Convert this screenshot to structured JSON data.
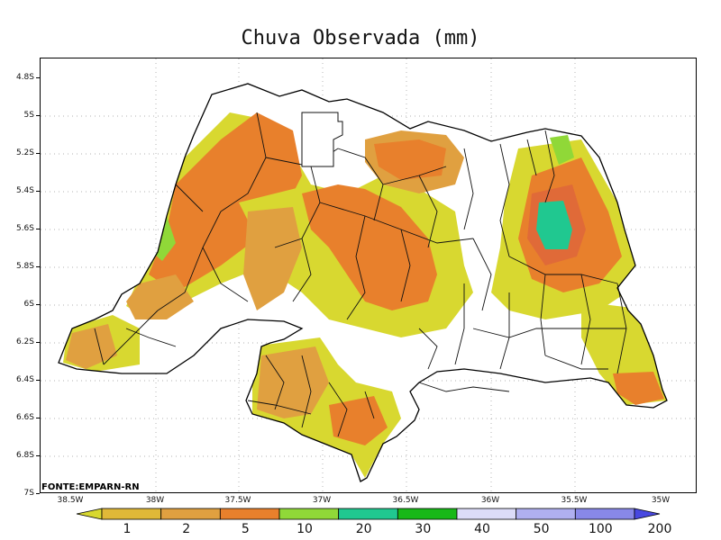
{
  "title": "Chuva Observada (mm)",
  "source": "FONTE:EMPARN-RN",
  "axes": {
    "y_ticks": [
      "4.8S",
      "5S",
      "5.2S",
      "5.4S",
      "5.6S",
      "5.8S",
      "6S",
      "6.2S",
      "6.4S",
      "6.6S",
      "6.8S",
      "7S"
    ],
    "x_ticks": [
      "38.5W",
      "38W",
      "37.5W",
      "37W",
      "36.5W",
      "36W",
      "35.5W",
      "35W"
    ],
    "lat_range": [
      -7.0,
      -4.7
    ],
    "lon_range": [
      -38.6,
      -34.95
    ],
    "grid": "dotted"
  },
  "colorbar": {
    "levels": [
      "1",
      "2",
      "5",
      "10",
      "20",
      "30",
      "40",
      "50",
      "100",
      "200"
    ],
    "colors": [
      "#d8d830",
      "#e0b838",
      "#e0a040",
      "#e8802c",
      "#90d838",
      "#20c890",
      "#18b818",
      "#dcdcf8",
      "#b0b0f0",
      "#8888e8",
      "#4848e0"
    ]
  },
  "regions": [
    {
      "name": "west-orange-band",
      "level": "10"
    },
    {
      "name": "central-orange",
      "level": "10"
    },
    {
      "name": "east-green-core",
      "level": "30"
    },
    {
      "name": "southeast-orange",
      "level": "10"
    },
    {
      "name": "south-orange",
      "level": "10"
    }
  ]
}
